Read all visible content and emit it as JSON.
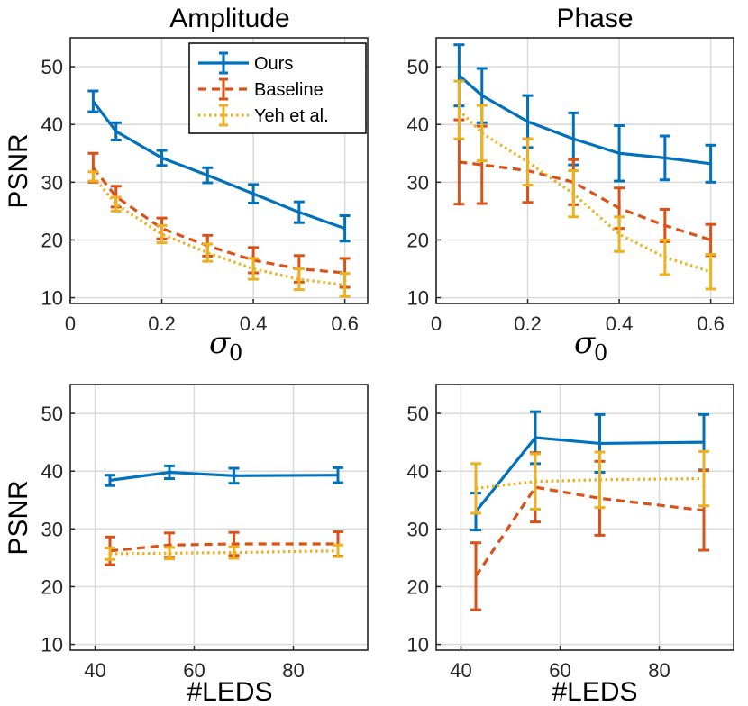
{
  "colors": {
    "ours": "#0072bd",
    "baseline": "#d95319",
    "yeh": "#edb120",
    "grid": "#d9d9d9",
    "axis": "#262626"
  },
  "labels": {
    "psnr": "PSNR",
    "sigma": "σ",
    "sigma_sub": "0",
    "leds": "#LEDS"
  },
  "legend": [
    {
      "name": "Ours",
      "color": "#0072bd",
      "dash": "solid"
    },
    {
      "name": "Baseline",
      "color": "#d95319",
      "dash": "dashed"
    },
    {
      "name": "Yeh et al.",
      "color": "#edb120",
      "dash": "dotted"
    }
  ],
  "chart_data": [
    {
      "type": "line",
      "title": "Amplitude",
      "xlabel": "σ0",
      "ylabel": "PSNR",
      "xlim": [
        0,
        0.65
      ],
      "ylim": [
        9,
        55
      ],
      "xticks": [
        0,
        0.2,
        0.4,
        0.6
      ],
      "xtick_labels": [
        "0",
        "0.2",
        "0.4",
        "0.6"
      ],
      "yticks": [
        10,
        20,
        30,
        40,
        50
      ],
      "ytick_labels": [
        "10",
        "20",
        "30",
        "40",
        "50"
      ],
      "x": [
        0.05,
        0.1,
        0.2,
        0.3,
        0.4,
        0.5,
        0.6
      ],
      "legend": true,
      "series": [
        {
          "name": "Ours",
          "values": [
            44.0,
            38.8,
            34.2,
            31.2,
            28.0,
            24.8,
            22.0
          ],
          "err": [
            1.8,
            1.5,
            1.3,
            1.3,
            1.6,
            1.8,
            2.2
          ]
        },
        {
          "name": "Baseline",
          "values": [
            32.5,
            27.5,
            22.0,
            19.0,
            16.5,
            15.0,
            14.3
          ],
          "err": [
            2.5,
            1.8,
            1.8,
            1.8,
            2.2,
            2.3,
            2.5
          ]
        },
        {
          "name": "Yeh et al.",
          "values": [
            31.0,
            26.2,
            21.0,
            17.8,
            15.0,
            13.2,
            12.2
          ],
          "err": [
            0.8,
            1.2,
            1.5,
            1.5,
            1.8,
            1.8,
            2.0
          ]
        }
      ]
    },
    {
      "type": "line",
      "title": "Phase",
      "xlabel": "σ0",
      "ylabel": "",
      "xlim": [
        0,
        0.65
      ],
      "ylim": [
        9,
        55
      ],
      "xticks": [
        0,
        0.2,
        0.4,
        0.6
      ],
      "xtick_labels": [
        "0",
        "0.2",
        "0.4",
        "0.6"
      ],
      "yticks": [
        10,
        20,
        30,
        40,
        50
      ],
      "ytick_labels": [
        "10",
        "20",
        "30",
        "40",
        "50"
      ],
      "x": [
        0.05,
        0.1,
        0.2,
        0.3,
        0.4,
        0.5,
        0.6
      ],
      "legend": false,
      "series": [
        {
          "name": "Ours",
          "values": [
            48.5,
            45.0,
            40.5,
            37.5,
            35.0,
            34.2,
            33.2
          ],
          "err": [
            5.3,
            4.7,
            4.5,
            4.5,
            4.8,
            3.8,
            3.2
          ]
        },
        {
          "name": "Baseline",
          "values": [
            33.5,
            33.0,
            32.0,
            30.0,
            25.5,
            22.5,
            20.0
          ],
          "err": [
            7.3,
            6.7,
            5.5,
            3.9,
            3.5,
            2.8,
            2.7
          ]
        },
        {
          "name": "Yeh et al.",
          "values": [
            42.5,
            38.5,
            33.5,
            28.0,
            21.0,
            17.0,
            14.5
          ],
          "err": [
            5.0,
            4.8,
            4.0,
            4.0,
            3.0,
            3.0,
            3.0
          ]
        }
      ]
    },
    {
      "type": "line",
      "title": "",
      "xlabel": "#LEDS",
      "ylabel": "PSNR",
      "xlim": [
        35,
        95
      ],
      "ylim": [
        9,
        55
      ],
      "xticks": [
        40,
        60,
        80
      ],
      "xtick_labels": [
        "40",
        "60",
        "80"
      ],
      "yticks": [
        10,
        20,
        30,
        40,
        50
      ],
      "ytick_labels": [
        "10",
        "20",
        "30",
        "40",
        "50"
      ],
      "x": [
        43,
        55,
        68,
        89
      ],
      "legend": false,
      "series": [
        {
          "name": "Ours",
          "values": [
            38.4,
            39.8,
            39.2,
            39.3
          ],
          "err": [
            0.9,
            1.1,
            1.3,
            1.3
          ]
        },
        {
          "name": "Baseline",
          "values": [
            26.2,
            27.2,
            27.4,
            27.4
          ],
          "err": [
            2.4,
            2.1,
            2.0,
            2.1
          ]
        },
        {
          "name": "Yeh et al.",
          "values": [
            25.7,
            25.8,
            25.9,
            26.2
          ],
          "err": [
            1.0,
            1.0,
            1.0,
            1.0
          ]
        }
      ]
    },
    {
      "type": "line",
      "title": "",
      "xlabel": "#LEDS",
      "ylabel": "",
      "xlim": [
        35,
        95
      ],
      "ylim": [
        9,
        55
      ],
      "xticks": [
        40,
        60,
        80
      ],
      "xtick_labels": [
        "40",
        "60",
        "80"
      ],
      "yticks": [
        10,
        20,
        30,
        40,
        50
      ],
      "ytick_labels": [
        "10",
        "20",
        "30",
        "40",
        "50"
      ],
      "x": [
        43,
        55,
        68,
        89
      ],
      "legend": false,
      "series": [
        {
          "name": "Ours",
          "values": [
            33.0,
            45.8,
            44.8,
            45.0
          ],
          "err": [
            3.2,
            4.5,
            5.0,
            4.8
          ]
        },
        {
          "name": "Baseline",
          "values": [
            21.8,
            37.2,
            35.3,
            33.2
          ],
          "err": [
            5.8,
            6.0,
            6.4,
            6.9
          ]
        },
        {
          "name": "Yeh et al.",
          "values": [
            37.0,
            38.2,
            38.5,
            38.7
          ],
          "err": [
            4.3,
            4.8,
            4.8,
            4.7
          ]
        }
      ]
    }
  ]
}
